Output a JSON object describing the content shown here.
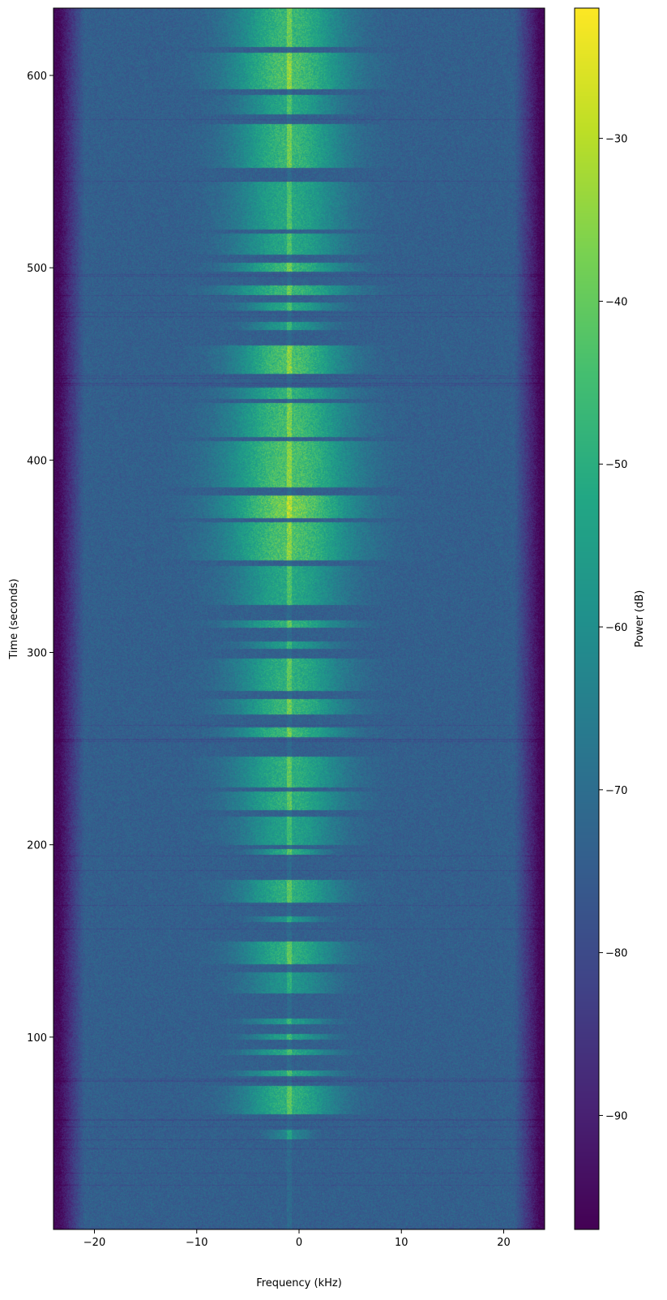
{
  "chart_data": {
    "type": "heatmap",
    "title": "",
    "xlabel": "Frequency (kHz)",
    "ylabel": "Time (seconds)",
    "xlim": [
      -24,
      24
    ],
    "ylim": [
      0,
      635
    ],
    "x_ticks": [
      -20,
      -10,
      0,
      10,
      20
    ],
    "x_tick_labels": [
      "−20",
      "−10",
      "0",
      "10",
      "20"
    ],
    "y_ticks": [
      100,
      200,
      300,
      400,
      500,
      600
    ],
    "y_tick_labels": [
      "100",
      "200",
      "300",
      "400",
      "500",
      "600"
    ],
    "colorbar": {
      "label": "Power (dB)",
      "colormap": "viridis",
      "range": [
        -97,
        -22
      ],
      "ticks": [
        -90,
        -80,
        -70,
        -60,
        -50,
        -40,
        -30
      ],
      "tick_labels": [
        "−90",
        "−80",
        "−70",
        "−60",
        "−50",
        "−40",
        "−30"
      ]
    },
    "background_level_db": -74,
    "edge_rolloff_db": -96,
    "passband_khz": [
      -21,
      21
    ],
    "carrier_freq_khz": -1,
    "signal_bursts": [
      {
        "t_start": 47,
        "t_end": 52,
        "peak_db": -60,
        "width_khz": 4
      },
      {
        "t_start": 60,
        "t_end": 75,
        "peak_db": -45,
        "width_khz": 9
      },
      {
        "t_start": 80,
        "t_end": 83,
        "peak_db": -48,
        "width_khz": 8
      },
      {
        "t_start": 91,
        "t_end": 94,
        "peak_db": -48,
        "width_khz": 8
      },
      {
        "t_start": 99,
        "t_end": 102,
        "peak_db": -50,
        "width_khz": 7
      },
      {
        "t_start": 107,
        "t_end": 110,
        "peak_db": -52,
        "width_khz": 7
      },
      {
        "t_start": 123,
        "t_end": 134,
        "peak_db": -55,
        "width_khz": 8
      },
      {
        "t_start": 138,
        "t_end": 150,
        "peak_db": -45,
        "width_khz": 9
      },
      {
        "t_start": 160,
        "t_end": 163,
        "peak_db": -55,
        "width_khz": 6
      },
      {
        "t_start": 170,
        "t_end": 182,
        "peak_db": -45,
        "width_khz": 9
      },
      {
        "t_start": 195,
        "t_end": 198,
        "peak_db": -45,
        "width_khz": 6
      },
      {
        "t_start": 200,
        "t_end": 215,
        "peak_db": -50,
        "width_khz": 9
      },
      {
        "t_start": 218,
        "t_end": 228,
        "peak_db": -45,
        "width_khz": 10
      },
      {
        "t_start": 230,
        "t_end": 246,
        "peak_db": -45,
        "width_khz": 10
      },
      {
        "t_start": 256,
        "t_end": 261,
        "peak_db": -42,
        "width_khz": 10
      },
      {
        "t_start": 268,
        "t_end": 276,
        "peak_db": -42,
        "width_khz": 10
      },
      {
        "t_start": 280,
        "t_end": 297,
        "peak_db": -45,
        "width_khz": 10
      },
      {
        "t_start": 302,
        "t_end": 306,
        "peak_db": -52,
        "width_khz": 8
      },
      {
        "t_start": 313,
        "t_end": 317,
        "peak_db": -45,
        "width_khz": 10
      },
      {
        "t_start": 325,
        "t_end": 345,
        "peak_db": -48,
        "width_khz": 10
      },
      {
        "t_start": 348,
        "t_end": 368,
        "peak_db": -38,
        "width_khz": 12
      },
      {
        "t_start": 370,
        "t_end": 382,
        "peak_db": -32,
        "width_khz": 12
      },
      {
        "t_start": 386,
        "t_end": 410,
        "peak_db": -38,
        "width_khz": 12
      },
      {
        "t_start": 412,
        "t_end": 430,
        "peak_db": -40,
        "width_khz": 11
      },
      {
        "t_start": 432,
        "t_end": 438,
        "peak_db": -45,
        "width_khz": 10
      },
      {
        "t_start": 445,
        "t_end": 460,
        "peak_db": -38,
        "width_khz": 10
      },
      {
        "t_start": 468,
        "t_end": 472,
        "peak_db": -52,
        "width_khz": 7
      },
      {
        "t_start": 478,
        "t_end": 482,
        "peak_db": -48,
        "width_khz": 8
      },
      {
        "t_start": 486,
        "t_end": 491,
        "peak_db": -42,
        "width_khz": 11
      },
      {
        "t_start": 498,
        "t_end": 503,
        "peak_db": -42,
        "width_khz": 10
      },
      {
        "t_start": 507,
        "t_end": 518,
        "peak_db": -48,
        "width_khz": 10
      },
      {
        "t_start": 520,
        "t_end": 545,
        "peak_db": -48,
        "width_khz": 10
      },
      {
        "t_start": 552,
        "t_end": 575,
        "peak_db": -42,
        "width_khz": 10
      },
      {
        "t_start": 580,
        "t_end": 590,
        "peak_db": -48,
        "width_khz": 9
      },
      {
        "t_start": 593,
        "t_end": 612,
        "peak_db": -38,
        "width_khz": 11
      },
      {
        "t_start": 615,
        "t_end": 635,
        "peak_db": -42,
        "width_khz": 10
      }
    ]
  }
}
